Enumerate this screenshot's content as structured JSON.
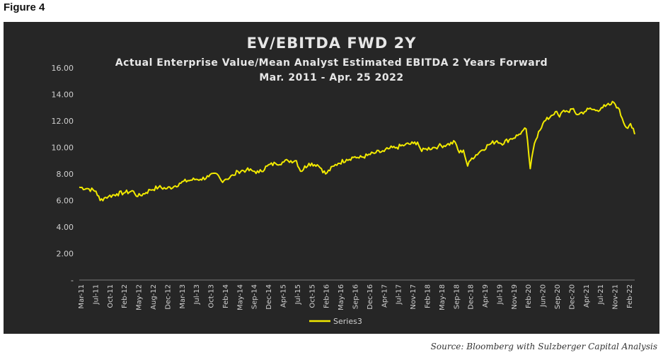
{
  "figure_label": "Figure 4",
  "source": "Source: Bloomberg with Sulzberger Capital Analysis",
  "colors": {
    "background": "#262626",
    "line": "#f2ea00",
    "text": "#e6e6e6",
    "axis_text": "#d0d0d0",
    "grid": "#555555"
  },
  "chart_data": {
    "type": "line",
    "title": "EV/EBITDA FWD 2Y",
    "subtitle": "Actual Enterprise Value/Mean Analyst Estimated EBITDA 2 Years Forward",
    "date_range": "Mar. 2011 - Apr. 25 2022",
    "xlabel": "",
    "ylabel": "",
    "ylim": [
      0,
      16
    ],
    "yticks": [
      "-",
      "2.00",
      "4.00",
      "6.00",
      "8.00",
      "10.00",
      "12.00",
      "14.00",
      "16.00"
    ],
    "xticks": [
      "Mar-11",
      "Jul-11",
      "Oct-11",
      "Feb-12",
      "May-12",
      "Aug-12",
      "Dec-12",
      "Mar-13",
      "Jul-13",
      "Oct-13",
      "Feb-14",
      "May-14",
      "Sep-14",
      "Dec-14",
      "Apr-15",
      "Jul-15",
      "Oct-15",
      "Feb-16",
      "May-16",
      "Sep-16",
      "Dec-16",
      "Apr-17",
      "Jul-17",
      "Nov-17",
      "Feb-18",
      "May-18",
      "Sep-18",
      "Dec-18",
      "Apr-19",
      "Jul-19",
      "Nov-19",
      "Feb-20",
      "Jun-20",
      "Sep-20",
      "Dec-20",
      "Apr-21",
      "Jul-21",
      "Nov-21",
      "Feb-22"
    ],
    "grid": false,
    "legend": "bottom",
    "series": [
      {
        "name": "Series3",
        "x": [
          "2011-03",
          "2011-05",
          "2011-07",
          "2011-08",
          "2011-09",
          "2011-10",
          "2011-12",
          "2012-02",
          "2012-04",
          "2012-05",
          "2012-07",
          "2012-08",
          "2012-10",
          "2012-12",
          "2013-02",
          "2013-03",
          "2013-05",
          "2013-07",
          "2013-08",
          "2013-10",
          "2013-12",
          "2014-01",
          "2014-02",
          "2014-04",
          "2014-05",
          "2014-07",
          "2014-09",
          "2014-10",
          "2014-12",
          "2015-02",
          "2015-04",
          "2015-05",
          "2015-07",
          "2015-08",
          "2015-10",
          "2015-12",
          "2016-01",
          "2016-02",
          "2016-04",
          "2016-05",
          "2016-07",
          "2016-09",
          "2016-10",
          "2016-12",
          "2017-02",
          "2017-04",
          "2017-05",
          "2017-07",
          "2017-09",
          "2017-11",
          "2017-12",
          "2018-01",
          "2018-02",
          "2018-04",
          "2018-05",
          "2018-07",
          "2018-09",
          "2018-10",
          "2018-11",
          "2018-12",
          "2019-01",
          "2019-03",
          "2019-05",
          "2019-07",
          "2019-08",
          "2019-10",
          "2019-12",
          "2020-01",
          "2020-02",
          "2020-03",
          "2020-04",
          "2020-05",
          "2020-06",
          "2020-08",
          "2020-09",
          "2020-10",
          "2020-11",
          "2020-12",
          "2021-01",
          "2021-02",
          "2021-04",
          "2021-05",
          "2021-07",
          "2021-08",
          "2021-09",
          "2021-10",
          "2021-11",
          "2021-12",
          "2022-01",
          "2022-02",
          "2022-03",
          "2022-04"
        ],
        "values": [
          7.0,
          6.9,
          6.7,
          6.0,
          6.2,
          6.3,
          6.5,
          6.6,
          6.7,
          6.3,
          6.6,
          6.8,
          7.0,
          6.9,
          7.1,
          7.3,
          7.5,
          7.6,
          7.6,
          7.8,
          8.0,
          7.5,
          7.6,
          7.9,
          8.2,
          8.3,
          8.2,
          8.1,
          8.6,
          8.8,
          8.9,
          9.0,
          9.0,
          8.2,
          8.8,
          8.7,
          8.4,
          8.0,
          8.6,
          8.8,
          9.1,
          9.3,
          9.2,
          9.4,
          9.6,
          9.7,
          9.9,
          10.0,
          10.2,
          10.3,
          10.4,
          9.7,
          9.9,
          10.0,
          10.1,
          10.2,
          10.4,
          9.6,
          9.8,
          8.6,
          9.2,
          9.7,
          10.2,
          10.5,
          10.3,
          10.6,
          10.9,
          11.2,
          11.4,
          8.4,
          10.3,
          11.2,
          11.8,
          12.4,
          12.7,
          12.3,
          12.8,
          12.7,
          12.9,
          12.5,
          12.7,
          12.9,
          12.8,
          13.0,
          13.1,
          13.2,
          13.4,
          13.0,
          12.2,
          11.5,
          11.8,
          11.0
        ]
      }
    ]
  }
}
